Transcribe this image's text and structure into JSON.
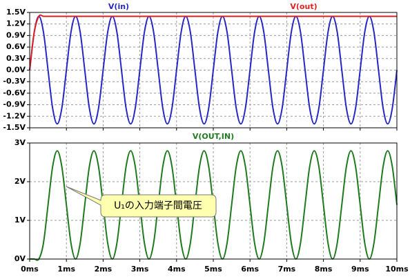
{
  "chart_data": [
    {
      "type": "line",
      "x": [
        0,
        0.125,
        0.25,
        0.375,
        0.5,
        0.625,
        0.75,
        0.875,
        1,
        1.125,
        1.25,
        1.375,
        1.5,
        1.625,
        1.75,
        1.875,
        2,
        2.125,
        2.25,
        2.375,
        2.5,
        2.625,
        2.75,
        2.875,
        3,
        3.125,
        3.25,
        3.375,
        3.5,
        3.625,
        3.75,
        3.875,
        4,
        4.125,
        4.25,
        4.375,
        4.5,
        4.625,
        4.75,
        4.875,
        5,
        5.125,
        5.25,
        5.375,
        5.5,
        5.625,
        5.75,
        5.875,
        6,
        6.125,
        6.25,
        6.375,
        6.5,
        6.625,
        6.75,
        6.875,
        7,
        7.125,
        7.25,
        7.375,
        7.5,
        7.625,
        7.75,
        7.875,
        8,
        8.125,
        8.25,
        8.375,
        8.5,
        8.625,
        8.75,
        8.875,
        9,
        9.125,
        9.25,
        9.375,
        9.5,
        9.625,
        9.75,
        9.875,
        10
      ],
      "series": [
        {
          "name": "V(in)",
          "color": "#2626c4",
          "values": [
            0,
            0.99,
            1.4,
            0.99,
            0,
            -0.99,
            -1.4,
            -0.99,
            0,
            0.99,
            1.4,
            0.99,
            0,
            -0.99,
            -1.4,
            -0.99,
            0,
            0.99,
            1.4,
            0.99,
            0,
            -0.99,
            -1.4,
            -0.99,
            0,
            0.99,
            1.4,
            0.99,
            0,
            -0.99,
            -1.4,
            -0.99,
            0,
            0.99,
            1.4,
            0.99,
            0,
            -0.99,
            -1.4,
            -0.99,
            0,
            0.99,
            1.4,
            0.99,
            0,
            -0.99,
            -1.4,
            -0.99,
            0,
            0.99,
            1.4,
            0.99,
            0,
            -0.99,
            -1.4,
            -0.99,
            0,
            0.99,
            1.4,
            0.99,
            0,
            -0.99,
            -1.4,
            -0.99,
            0,
            0.99,
            1.4,
            0.99,
            0,
            -0.99,
            -1.4,
            -0.99,
            0,
            0.99,
            1.4,
            0.99,
            0,
            -0.99,
            -1.4,
            -0.99,
            0
          ]
        },
        {
          "name": "V(out)",
          "color": "#e02020",
          "values": [
            0,
            0.99,
            1.4,
            1.4,
            1.4,
            1.4,
            1.4,
            1.4,
            1.4,
            1.4,
            1.4,
            1.4,
            1.4,
            1.4,
            1.4,
            1.4,
            1.4,
            1.4,
            1.4,
            1.4,
            1.4,
            1.4,
            1.4,
            1.4,
            1.4,
            1.4,
            1.4,
            1.4,
            1.4,
            1.4,
            1.4,
            1.4,
            1.4,
            1.4,
            1.4,
            1.4,
            1.4,
            1.4,
            1.4,
            1.4,
            1.4,
            1.4,
            1.4,
            1.4,
            1.4,
            1.4,
            1.4,
            1.4,
            1.4,
            1.4,
            1.4,
            1.4,
            1.4,
            1.4,
            1.4,
            1.4,
            1.4,
            1.4,
            1.4,
            1.4,
            1.4,
            1.4,
            1.4,
            1.4,
            1.4,
            1.4,
            1.4,
            1.4,
            1.4,
            1.4,
            1.4,
            1.4,
            1.4,
            1.4,
            1.4,
            1.4,
            1.4,
            1.4,
            1.4,
            1.4,
            1.4
          ]
        }
      ],
      "xlim": [
        0,
        10
      ],
      "xticks": [
        0,
        1,
        2,
        3,
        4,
        5,
        6,
        7,
        8,
        9,
        10
      ],
      "ylim": [
        -1.5,
        1.5
      ],
      "yticks": [
        {
          "value": 1.5,
          "label": "1.5V"
        },
        {
          "value": 1.2,
          "label": "1.2V"
        },
        {
          "value": 0.9,
          "label": "0.9V"
        },
        {
          "value": 0.6,
          "label": "0.6V"
        },
        {
          "value": 0.3,
          "label": "0.3V"
        },
        {
          "value": 0,
          "label": "0.0V"
        },
        {
          "value": -0.3,
          "label": "-0.3V"
        },
        {
          "value": -0.6,
          "label": "-0.6V"
        },
        {
          "value": -0.9,
          "label": "-0.9V"
        },
        {
          "value": -1.2,
          "label": "-1.2V"
        },
        {
          "value": -1.5,
          "label": "-1.5V"
        }
      ],
      "grid": true
    },
    {
      "type": "line",
      "x": [
        0,
        0.125,
        0.25,
        0.375,
        0.5,
        0.625,
        0.75,
        0.875,
        1,
        1.125,
        1.25,
        1.375,
        1.5,
        1.625,
        1.75,
        1.875,
        2,
        2.125,
        2.25,
        2.375,
        2.5,
        2.625,
        2.75,
        2.875,
        3,
        3.125,
        3.25,
        3.375,
        3.5,
        3.625,
        3.75,
        3.875,
        4,
        4.125,
        4.25,
        4.375,
        4.5,
        4.625,
        4.75,
        4.875,
        5,
        5.125,
        5.25,
        5.375,
        5.5,
        5.625,
        5.75,
        5.875,
        6,
        6.125,
        6.25,
        6.375,
        6.5,
        6.625,
        6.75,
        6.875,
        7,
        7.125,
        7.25,
        7.375,
        7.5,
        7.625,
        7.75,
        7.875,
        8,
        8.125,
        8.25,
        8.375,
        8.5,
        8.625,
        8.75,
        8.875,
        9,
        9.125,
        9.25,
        9.375,
        9.5,
        9.625,
        9.75,
        9.875,
        10
      ],
      "series": [
        {
          "name": "V(OUT,IN)",
          "color": "#1e7a1e",
          "values": [
            0,
            0,
            0,
            0.41,
            1.4,
            2.39,
            2.8,
            2.39,
            1.4,
            0.41,
            0,
            0.41,
            1.4,
            2.39,
            2.8,
            2.39,
            1.4,
            0.41,
            0,
            0.41,
            1.4,
            2.39,
            2.8,
            2.39,
            1.4,
            0.41,
            0,
            0.41,
            1.4,
            2.39,
            2.8,
            2.39,
            1.4,
            0.41,
            0,
            0.41,
            1.4,
            2.39,
            2.8,
            2.39,
            1.4,
            0.41,
            0,
            0.41,
            1.4,
            2.39,
            2.8,
            2.39,
            1.4,
            0.41,
            0,
            0.41,
            1.4,
            2.39,
            2.8,
            2.39,
            1.4,
            0.41,
            0,
            0.41,
            1.4,
            2.39,
            2.8,
            2.39,
            1.4,
            0.41,
            0,
            0.41,
            1.4,
            2.39,
            2.8,
            2.39,
            1.4,
            0.41,
            0,
            0.41,
            1.4,
            2.39,
            2.8,
            2.39,
            1.4
          ]
        }
      ],
      "xlim": [
        0,
        10
      ],
      "xticks": [
        {
          "value": 0,
          "label": "0ms"
        },
        {
          "value": 1,
          "label": "1ms"
        },
        {
          "value": 2,
          "label": "2ms"
        },
        {
          "value": 3,
          "label": "3ms"
        },
        {
          "value": 4,
          "label": "4ms"
        },
        {
          "value": 5,
          "label": "5ms"
        },
        {
          "value": 6,
          "label": "6ms"
        },
        {
          "value": 7,
          "label": "7ms"
        },
        {
          "value": 8,
          "label": "8ms"
        },
        {
          "value": 9,
          "label": "9ms"
        },
        {
          "value": 10,
          "label": "10ms"
        }
      ],
      "ylim": [
        0,
        3
      ],
      "yticks": [
        {
          "value": 0,
          "label": "0V"
        },
        {
          "value": 1,
          "label": "1V"
        },
        {
          "value": 2,
          "label": "2V"
        },
        {
          "value": 3,
          "label": "3V"
        }
      ],
      "grid": true,
      "annotation": "U₁の入力端子間電圧"
    }
  ]
}
